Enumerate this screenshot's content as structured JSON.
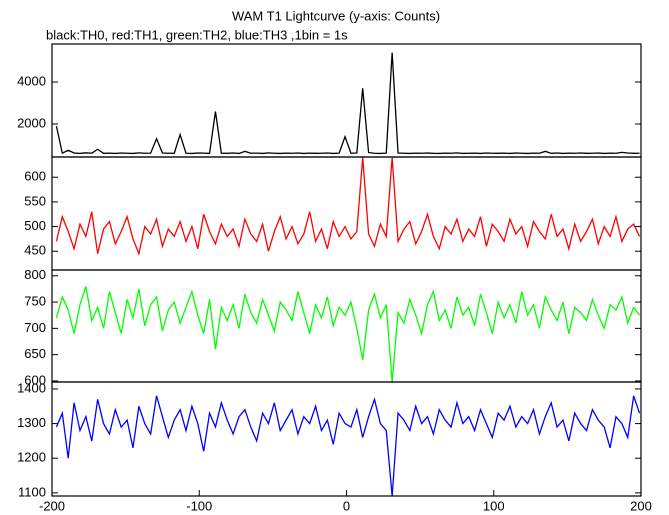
{
  "chart_data": [
    {
      "type": "line",
      "title": "WAM T1 Lightcurve (y-axis: Counts)",
      "subtitle": "black:TH0, red:TH1, green:TH2, blue:TH3 ,1bin = 1s",
      "color": "#000000",
      "xlim": [
        -200,
        200
      ],
      "ylim": [
        430,
        5810
      ],
      "yticks": [
        2000,
        4000
      ],
      "x": [
        -197,
        -193,
        -189,
        -185,
        -181,
        -177,
        -173,
        -169,
        -165,
        -161,
        -157,
        -153,
        -149,
        -145,
        -141,
        -137,
        -133,
        -129,
        -125,
        -121,
        -117,
        -113,
        -109,
        -105,
        -101,
        -97,
        -93,
        -89,
        -85,
        -81,
        -77,
        -73,
        -69,
        -65,
        -61,
        -57,
        -53,
        -49,
        -45,
        -41,
        -37,
        -33,
        -29,
        -25,
        -21,
        -17,
        -13,
        -9,
        -5,
        -1,
        3,
        7,
        11,
        15,
        19,
        23,
        27,
        31,
        35,
        39,
        43,
        47,
        51,
        55,
        59,
        63,
        67,
        71,
        75,
        79,
        83,
        87,
        91,
        95,
        99,
        103,
        107,
        111,
        115,
        119,
        123,
        127,
        131,
        135,
        139,
        143,
        147,
        151,
        155,
        159,
        163,
        167,
        171,
        175,
        179,
        183,
        187,
        191,
        195,
        199
      ],
      "values": [
        1900,
        610,
        750,
        620,
        600,
        630,
        610,
        800,
        605,
        615,
        600,
        620,
        610,
        600,
        625,
        610,
        615,
        1300,
        620,
        610,
        605,
        1500,
        610,
        600,
        620,
        615,
        600,
        2600,
        610,
        605,
        620,
        600,
        700,
        610,
        615,
        600,
        625,
        610,
        600,
        615,
        610,
        620,
        600,
        615,
        605,
        610,
        620,
        600,
        615,
        1400,
        610,
        620,
        3700,
        640,
        610,
        600,
        615,
        5400,
        620,
        610,
        600,
        615,
        610,
        620,
        605,
        600,
        615,
        610,
        625,
        600,
        610,
        615,
        600,
        620,
        610,
        605,
        615,
        600,
        620,
        610,
        600,
        615,
        610,
        700,
        605,
        620,
        600,
        615,
        610,
        620,
        605,
        610,
        620,
        600,
        615,
        610,
        650,
        620,
        605,
        610
      ]
    },
    {
      "type": "line",
      "color": "#ff0000",
      "xlim": [
        -200,
        200
      ],
      "ylim": [
        412,
        641
      ],
      "yticks": [
        450,
        500,
        550,
        600
      ],
      "x": [
        -197,
        -193,
        -189,
        -185,
        -181,
        -177,
        -173,
        -169,
        -165,
        -161,
        -157,
        -153,
        -149,
        -145,
        -141,
        -137,
        -133,
        -129,
        -125,
        -121,
        -117,
        -113,
        -109,
        -105,
        -101,
        -97,
        -93,
        -89,
        -85,
        -81,
        -77,
        -73,
        -69,
        -65,
        -61,
        -57,
        -53,
        -49,
        -45,
        -41,
        -37,
        -33,
        -29,
        -25,
        -21,
        -17,
        -13,
        -9,
        -5,
        -1,
        3,
        7,
        11,
        15,
        19,
        23,
        27,
        31,
        35,
        39,
        43,
        47,
        51,
        55,
        59,
        63,
        67,
        71,
        75,
        79,
        83,
        87,
        91,
        95,
        99,
        103,
        107,
        111,
        115,
        119,
        123,
        127,
        131,
        135,
        139,
        143,
        147,
        151,
        155,
        159,
        163,
        167,
        171,
        175,
        179,
        183,
        187,
        191,
        195,
        199
      ],
      "values": [
        470,
        520,
        490,
        455,
        505,
        480,
        530,
        445,
        495,
        510,
        465,
        490,
        520,
        475,
        445,
        500,
        485,
        515,
        460,
        495,
        480,
        510,
        470,
        500,
        455,
        525,
        490,
        465,
        505,
        480,
        495,
        460,
        515,
        485,
        470,
        505,
        450,
        490,
        520,
        475,
        500,
        465,
        485,
        530,
        470,
        495,
        455,
        510,
        480,
        500,
        475,
        490,
        640,
        485,
        460,
        505,
        480,
        640,
        470,
        495,
        510,
        465,
        490,
        525,
        480,
        455,
        500,
        485,
        515,
        470,
        495,
        480,
        520,
        460,
        505,
        490,
        470,
        515,
        485,
        500,
        460,
        510,
        490,
        475,
        525,
        480,
        495,
        455,
        505,
        470,
        490,
        515,
        465,
        500,
        480,
        520,
        470,
        495,
        505,
        480
      ]
    },
    {
      "type": "line",
      "color": "#00ff00",
      "xlim": [
        -200,
        200
      ],
      "ylim": [
        598,
        811
      ],
      "yticks": [
        600,
        650,
        700,
        750,
        800
      ],
      "x": [
        -197,
        -193,
        -189,
        -185,
        -181,
        -177,
        -173,
        -169,
        -165,
        -161,
        -157,
        -153,
        -149,
        -145,
        -141,
        -137,
        -133,
        -129,
        -125,
        -121,
        -117,
        -113,
        -109,
        -105,
        -101,
        -97,
        -93,
        -89,
        -85,
        -81,
        -77,
        -73,
        -69,
        -65,
        -61,
        -57,
        -53,
        -49,
        -45,
        -41,
        -37,
        -33,
        -29,
        -25,
        -21,
        -17,
        -13,
        -9,
        -5,
        -1,
        3,
        7,
        11,
        15,
        19,
        23,
        27,
        31,
        35,
        39,
        43,
        47,
        51,
        55,
        59,
        63,
        67,
        71,
        75,
        79,
        83,
        87,
        91,
        95,
        99,
        103,
        107,
        111,
        115,
        119,
        123,
        127,
        131,
        135,
        139,
        143,
        147,
        151,
        155,
        159,
        163,
        167,
        171,
        175,
        179,
        183,
        187,
        191,
        195,
        199
      ],
      "values": [
        720,
        760,
        735,
        690,
        745,
        780,
        715,
        740,
        700,
        770,
        730,
        690,
        755,
        720,
        775,
        705,
        745,
        760,
        695,
        735,
        750,
        710,
        740,
        770,
        725,
        690,
        755,
        660,
        740,
        715,
        745,
        700,
        765,
        730,
        710,
        755,
        725,
        695,
        750,
        735,
        715,
        770,
        730,
        690,
        745,
        720,
        760,
        705,
        740,
        725,
        750,
        700,
        640,
        735,
        765,
        720,
        745,
        598,
        730,
        710,
        755,
        725,
        690,
        745,
        770,
        715,
        735,
        700,
        760,
        725,
        740,
        705,
        765,
        730,
        690,
        750,
        720,
        745,
        710,
        770,
        725,
        745,
        700,
        760,
        735,
        715,
        750,
        690,
        740,
        730,
        715,
        755,
        725,
        700,
        745,
        735,
        760,
        710,
        740,
        725
      ]
    },
    {
      "type": "line",
      "color": "#0000ff",
      "xlim": [
        -200,
        200
      ],
      "ylim": [
        1091,
        1420
      ],
      "yticks": [
        1100,
        1200,
        1300,
        1400
      ],
      "xticks": [
        -200,
        -100,
        0,
        100,
        200
      ],
      "x": [
        -197,
        -193,
        -189,
        -185,
        -181,
        -177,
        -173,
        -169,
        -165,
        -161,
        -157,
        -153,
        -149,
        -145,
        -141,
        -137,
        -133,
        -129,
        -125,
        -121,
        -117,
        -113,
        -109,
        -105,
        -101,
        -97,
        -93,
        -89,
        -85,
        -81,
        -77,
        -73,
        -69,
        -65,
        -61,
        -57,
        -53,
        -49,
        -45,
        -41,
        -37,
        -33,
        -29,
        -25,
        -21,
        -17,
        -13,
        -9,
        -5,
        -1,
        3,
        7,
        11,
        15,
        19,
        23,
        27,
        31,
        35,
        39,
        43,
        47,
        51,
        55,
        59,
        63,
        67,
        71,
        75,
        79,
        83,
        87,
        91,
        95,
        99,
        103,
        107,
        111,
        115,
        119,
        123,
        127,
        131,
        135,
        139,
        143,
        147,
        151,
        155,
        159,
        163,
        167,
        171,
        175,
        179,
        183,
        187,
        191,
        195,
        199
      ],
      "values": [
        1290,
        1330,
        1200,
        1360,
        1280,
        1320,
        1250,
        1370,
        1300,
        1270,
        1340,
        1290,
        1310,
        1230,
        1350,
        1300,
        1270,
        1380,
        1320,
        1260,
        1310,
        1340,
        1280,
        1350,
        1300,
        1220,
        1330,
        1290,
        1360,
        1310,
        1270,
        1320,
        1340,
        1290,
        1250,
        1330,
        1300,
        1360,
        1280,
        1310,
        1340,
        1270,
        1320,
        1300,
        1350,
        1280,
        1310,
        1240,
        1330,
        1300,
        1290,
        1340,
        1260,
        1320,
        1370,
        1300,
        1280,
        1091,
        1330,
        1310,
        1280,
        1350,
        1300,
        1320,
        1270,
        1340,
        1310,
        1290,
        1360,
        1300,
        1320,
        1280,
        1340,
        1300,
        1260,
        1330,
        1310,
        1350,
        1290,
        1320,
        1300,
        1340,
        1270,
        1320,
        1360,
        1290,
        1310,
        1250,
        1330,
        1300,
        1280,
        1340,
        1310,
        1290,
        1230,
        1320,
        1300,
        1260,
        1380,
        1330
      ]
    }
  ]
}
